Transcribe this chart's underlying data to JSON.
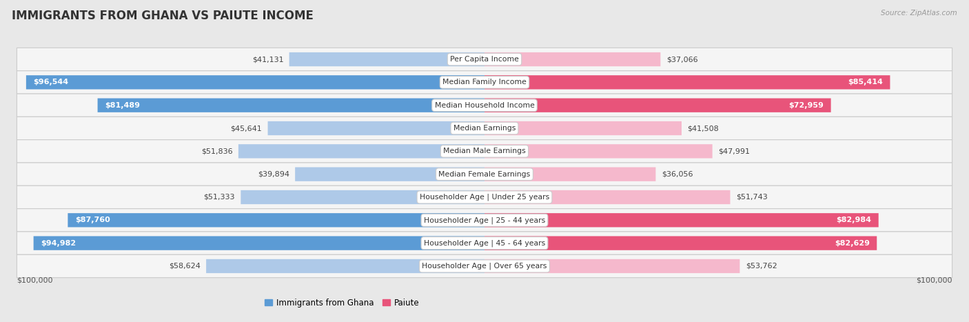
{
  "title": "IMMIGRANTS FROM GHANA VS PAIUTE INCOME",
  "source": "Source: ZipAtlas.com",
  "categories": [
    "Per Capita Income",
    "Median Family Income",
    "Median Household Income",
    "Median Earnings",
    "Median Male Earnings",
    "Median Female Earnings",
    "Householder Age | Under 25 years",
    "Householder Age | 25 - 44 years",
    "Householder Age | 45 - 64 years",
    "Householder Age | Over 65 years"
  ],
  "ghana_values": [
    41131,
    96544,
    81489,
    45641,
    51836,
    39894,
    51333,
    87760,
    94982,
    58624
  ],
  "paiute_values": [
    37066,
    85414,
    72959,
    41508,
    47991,
    36056,
    51743,
    82984,
    82629,
    53762
  ],
  "ghana_labels": [
    "$41,131",
    "$96,544",
    "$81,489",
    "$45,641",
    "$51,836",
    "$39,894",
    "$51,333",
    "$87,760",
    "$94,982",
    "$58,624"
  ],
  "paiute_labels": [
    "$37,066",
    "$85,414",
    "$72,959",
    "$41,508",
    "$47,991",
    "$36,056",
    "$51,743",
    "$82,984",
    "$82,629",
    "$53,762"
  ],
  "max_value": 100000,
  "ghana_color_light": "#aec9e8",
  "ghana_color_dark": "#5b9bd5",
  "paiute_color_light": "#f5b8cc",
  "paiute_color_dark": "#e8547a",
  "ghana_threshold": 65000,
  "paiute_threshold": 65000,
  "bg_color": "#e8e8e8",
  "row_bg_color": "#f5f5f5",
  "title_fontsize": 12,
  "label_fontsize": 8.0,
  "cat_fontsize": 7.8,
  "xlabel_left": "$100,000",
  "xlabel_right": "$100,000"
}
